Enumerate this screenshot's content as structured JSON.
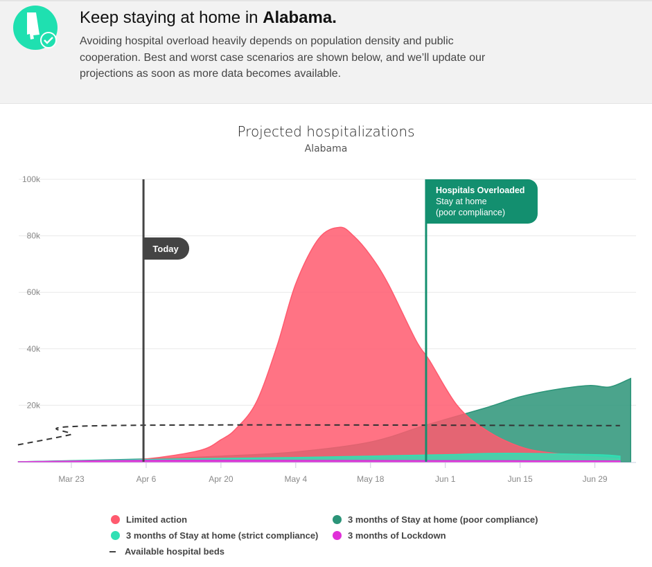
{
  "header": {
    "title_prefix": "Keep staying at home in ",
    "state": "Alabama.",
    "description": "Avoiding hospital overload heavily depends on population density and public cooperation. Best and worst case scenarios are shown below, and we’ll update our projections as soon as more data becomes available.",
    "icon": "alabama-check-icon"
  },
  "chart_data": {
    "type": "area",
    "title": "Projected hospitalizations",
    "subtitle": "Alabama",
    "x_unit": "days since Mar 23",
    "xlim": [
      -10,
      105
    ],
    "ylim": [
      0,
      100000
    ],
    "x_ticks": [
      {
        "day": 0,
        "label": "Mar 23"
      },
      {
        "day": 14,
        "label": "Apr 6"
      },
      {
        "day": 28,
        "label": "Apr 20"
      },
      {
        "day": 42,
        "label": "May 4"
      },
      {
        "day": 56,
        "label": "May 18"
      },
      {
        "day": 70,
        "label": "Jun 1"
      },
      {
        "day": 84,
        "label": "Jun 15"
      },
      {
        "day": 98,
        "label": "Jun 29"
      }
    ],
    "y_ticks": [
      {
        "v": 20000,
        "label": "20k"
      },
      {
        "v": 40000,
        "label": "40k"
      },
      {
        "v": 60000,
        "label": "60k"
      },
      {
        "v": 80000,
        "label": "80k"
      },
      {
        "v": 100000,
        "label": "100k"
      }
    ],
    "series": [
      {
        "name": "3 months of Stay at home (poor compliance)",
        "color": "#2b9478",
        "points": [
          [
            -10,
            0
          ],
          [
            14,
            1000
          ],
          [
            28,
            2000
          ],
          [
            42,
            3500
          ],
          [
            56,
            7000
          ],
          [
            66.4,
            13000
          ],
          [
            77.4,
            19000
          ],
          [
            84,
            23000
          ],
          [
            90.4,
            25500
          ],
          [
            96.9,
            27000
          ],
          [
            100.8,
            26500
          ],
          [
            104.7,
            29500
          ]
        ]
      },
      {
        "name": "Limited action",
        "color": "#ff5a6e",
        "points": [
          [
            -10,
            0
          ],
          [
            5,
            200
          ],
          [
            14,
            1000
          ],
          [
            24,
            4000
          ],
          [
            28,
            7800
          ],
          [
            30.7,
            11500
          ],
          [
            34.6,
            21000
          ],
          [
            38.5,
            41000
          ],
          [
            42,
            63000
          ],
          [
            46.3,
            79000
          ],
          [
            50.2,
            83000
          ],
          [
            52.8,
            80000
          ],
          [
            56,
            73000
          ],
          [
            59.3,
            63000
          ],
          [
            64.5,
            43000
          ],
          [
            67,
            36000
          ],
          [
            72.2,
            20000
          ],
          [
            77.4,
            11500
          ],
          [
            83.9,
            5400
          ],
          [
            90.4,
            3000
          ],
          [
            102.7,
            1000
          ]
        ]
      },
      {
        "name": "3 months of Stay at home (strict compliance)",
        "color": "#30e0b4",
        "points": [
          [
            -10,
            0
          ],
          [
            14,
            800
          ],
          [
            28,
            1200
          ],
          [
            42,
            1500
          ],
          [
            56,
            2000
          ],
          [
            70,
            2500
          ],
          [
            81.3,
            3000
          ],
          [
            98.2,
            2500
          ],
          [
            102.7,
            2000
          ]
        ]
      },
      {
        "name": "3 months of Lockdown",
        "color": "#e030d8",
        "points": [
          [
            -10,
            0
          ],
          [
            14,
            500
          ],
          [
            42,
            500
          ],
          [
            70,
            400
          ],
          [
            102.7,
            300
          ]
        ]
      }
    ],
    "beds": {
      "name": "Available hospital beds",
      "points": [
        [
          -10,
          6000
        ],
        [
          -0.4,
          9500
        ],
        [
          6.1,
          12800
        ],
        [
          102.7,
          12800
        ]
      ]
    },
    "annotations": {
      "today": {
        "day": 13.5,
        "label": "Today"
      },
      "overload": {
        "day": 66.4,
        "title": "Hospitals Overloaded",
        "line1": "Stay at home",
        "line2": "(poor compliance)",
        "color": "#138f6f"
      }
    },
    "legend": [
      "Limited action",
      "3 months of Stay at home (poor compliance)",
      "3 months of Stay at home (strict compliance)",
      "3 months of Lockdown",
      "Available hospital beds"
    ]
  }
}
